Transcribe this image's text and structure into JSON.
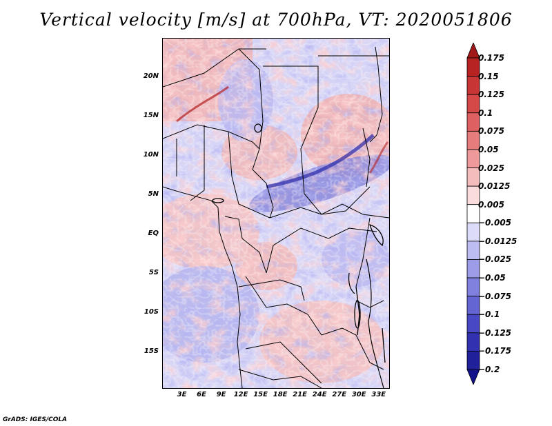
{
  "title": "Vertical velocity [m/s] at 700hPa, VT: 2020051806",
  "footer": "GrADS: IGES/COLA",
  "map": {
    "lat_labels": [
      "20N",
      "15N",
      "10N",
      "5N",
      "EQ",
      "5S",
      "10S",
      "15S"
    ],
    "lon_labels": [
      "3E",
      "6E",
      "9E",
      "12E",
      "15E",
      "18E",
      "21E",
      "24E",
      "27E",
      "30E",
      "33E"
    ],
    "lat_values": [
      20,
      15,
      10,
      5,
      0,
      -5,
      -10,
      -15
    ],
    "lon_values": [
      3,
      6,
      9,
      12,
      15,
      18,
      21,
      24,
      27,
      30,
      33
    ],
    "lon_range": [
      0,
      34.5
    ],
    "lat_range": [
      -19.5,
      25
    ],
    "field": "Vertical velocity at 700hPa",
    "units": "m/s",
    "valid_time": "2020051806"
  },
  "legend": {
    "labels": [
      "0.175",
      "0.15",
      "0.125",
      "0.1",
      "0.075",
      "0.05",
      "0.025",
      "0.0125",
      "0.005",
      "−0.005",
      "−0.0125",
      "−0.025",
      "−0.05",
      "−0.075",
      "−0.1",
      "−0.125",
      "−0.175",
      "−0.2"
    ],
    "colors": [
      "#a01818",
      "#b72222",
      "#c83535",
      "#d44848",
      "#de6060",
      "#e67c7c",
      "#ee9a9a",
      "#f4bcbc",
      "#fadcdc",
      "#ffffff",
      "#dcdcfa",
      "#bcbcf2",
      "#9c9ce8",
      "#8080de",
      "#6464d2",
      "#4848c4",
      "#3232b0",
      "#20209a",
      "#12128a"
    ]
  }
}
